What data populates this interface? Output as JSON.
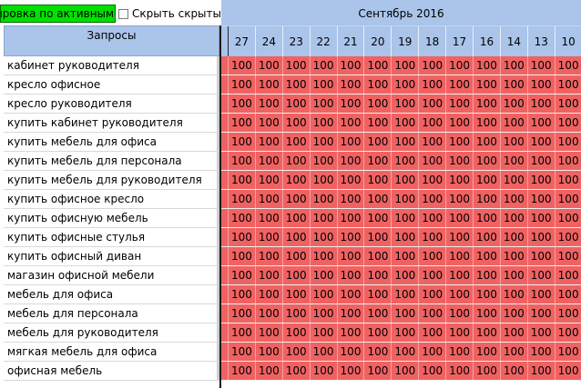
{
  "toolbar": {
    "sort_button_label": "ировка по активным",
    "hide_hidden_label": "Скрыть скрытые"
  },
  "table": {
    "queries_header": "Запросы",
    "month_header": "Сентябрь 2016",
    "days": [
      "27",
      "24",
      "23",
      "22",
      "21",
      "20",
      "19",
      "18",
      "17",
      "16",
      "14",
      "13",
      "10"
    ],
    "rows": [
      {
        "query": "кабинет руководителя",
        "values": [
          "100",
          "100",
          "100",
          "100",
          "100",
          "100",
          "100",
          "100",
          "100",
          "100",
          "100",
          "100",
          "100"
        ]
      },
      {
        "query": "кресло офисное",
        "values": [
          "100",
          "100",
          "100",
          "100",
          "100",
          "100",
          "100",
          "100",
          "100",
          "100",
          "100",
          "100",
          "100"
        ]
      },
      {
        "query": "кресло руководителя",
        "values": [
          "100",
          "100",
          "100",
          "100",
          "100",
          "100",
          "100",
          "100",
          "100",
          "100",
          "100",
          "100",
          "100"
        ]
      },
      {
        "query": "купить кабинет руководителя",
        "values": [
          "100",
          "100",
          "100",
          "100",
          "100",
          "100",
          "100",
          "100",
          "100",
          "100",
          "100",
          "100",
          "100"
        ]
      },
      {
        "query": "купить мебель для офиса",
        "values": [
          "100",
          "100",
          "100",
          "100",
          "100",
          "100",
          "100",
          "100",
          "100",
          "100",
          "100",
          "100",
          "100"
        ]
      },
      {
        "query": "купить мебель для персонала",
        "values": [
          "100",
          "100",
          "100",
          "100",
          "100",
          "100",
          "100",
          "100",
          "100",
          "100",
          "100",
          "100",
          "100"
        ]
      },
      {
        "query": "купить мебель для руководителя",
        "values": [
          "100",
          "100",
          "100",
          "100",
          "100",
          "100",
          "100",
          "100",
          "100",
          "100",
          "100",
          "100",
          "100"
        ]
      },
      {
        "query": "купить офисное кресло",
        "values": [
          "100",
          "100",
          "100",
          "100",
          "100",
          "100",
          "100",
          "100",
          "100",
          "100",
          "100",
          "100",
          "100"
        ]
      },
      {
        "query": "купить офисную мебель",
        "values": [
          "100",
          "100",
          "100",
          "100",
          "100",
          "100",
          "100",
          "100",
          "100",
          "100",
          "100",
          "100",
          "100"
        ]
      },
      {
        "query": "купить офисные стулья",
        "values": [
          "100",
          "100",
          "100",
          "100",
          "100",
          "100",
          "100",
          "100",
          "100",
          "100",
          "100",
          "100",
          "100"
        ]
      },
      {
        "query": "купить офисный диван",
        "values": [
          "100",
          "100",
          "100",
          "100",
          "100",
          "100",
          "100",
          "100",
          "100",
          "100",
          "100",
          "100",
          "100"
        ]
      },
      {
        "query": "магазин офисной мебели",
        "values": [
          "100",
          "100",
          "100",
          "100",
          "100",
          "100",
          "100",
          "100",
          "100",
          "100",
          "100",
          "100",
          "100"
        ]
      },
      {
        "query": "мебель для офиса",
        "values": [
          "100",
          "100",
          "100",
          "100",
          "100",
          "100",
          "100",
          "100",
          "100",
          "100",
          "100",
          "100",
          "100"
        ]
      },
      {
        "query": "мебель для персонала",
        "values": [
          "100",
          "100",
          "100",
          "100",
          "100",
          "100",
          "100",
          "100",
          "100",
          "100",
          "100",
          "100",
          "100"
        ]
      },
      {
        "query": "мебель для руководителя",
        "values": [
          "100",
          "100",
          "100",
          "100",
          "100",
          "100",
          "100",
          "100",
          "100",
          "100",
          "100",
          "100",
          "100"
        ]
      },
      {
        "query": "мягкая мебель для офиса",
        "values": [
          "100",
          "100",
          "100",
          "100",
          "100",
          "100",
          "100",
          "100",
          "100",
          "100",
          "100",
          "100",
          "100"
        ]
      },
      {
        "query": "офисная мебель",
        "values": [
          "100",
          "100",
          "100",
          "100",
          "100",
          "100",
          "100",
          "100",
          "100",
          "100",
          "100",
          "100",
          "100"
        ]
      }
    ]
  },
  "colors": {
    "header_bg": "#aac4ea",
    "cell_bg": "#f06262",
    "sort_button_bg": "#00e000"
  }
}
